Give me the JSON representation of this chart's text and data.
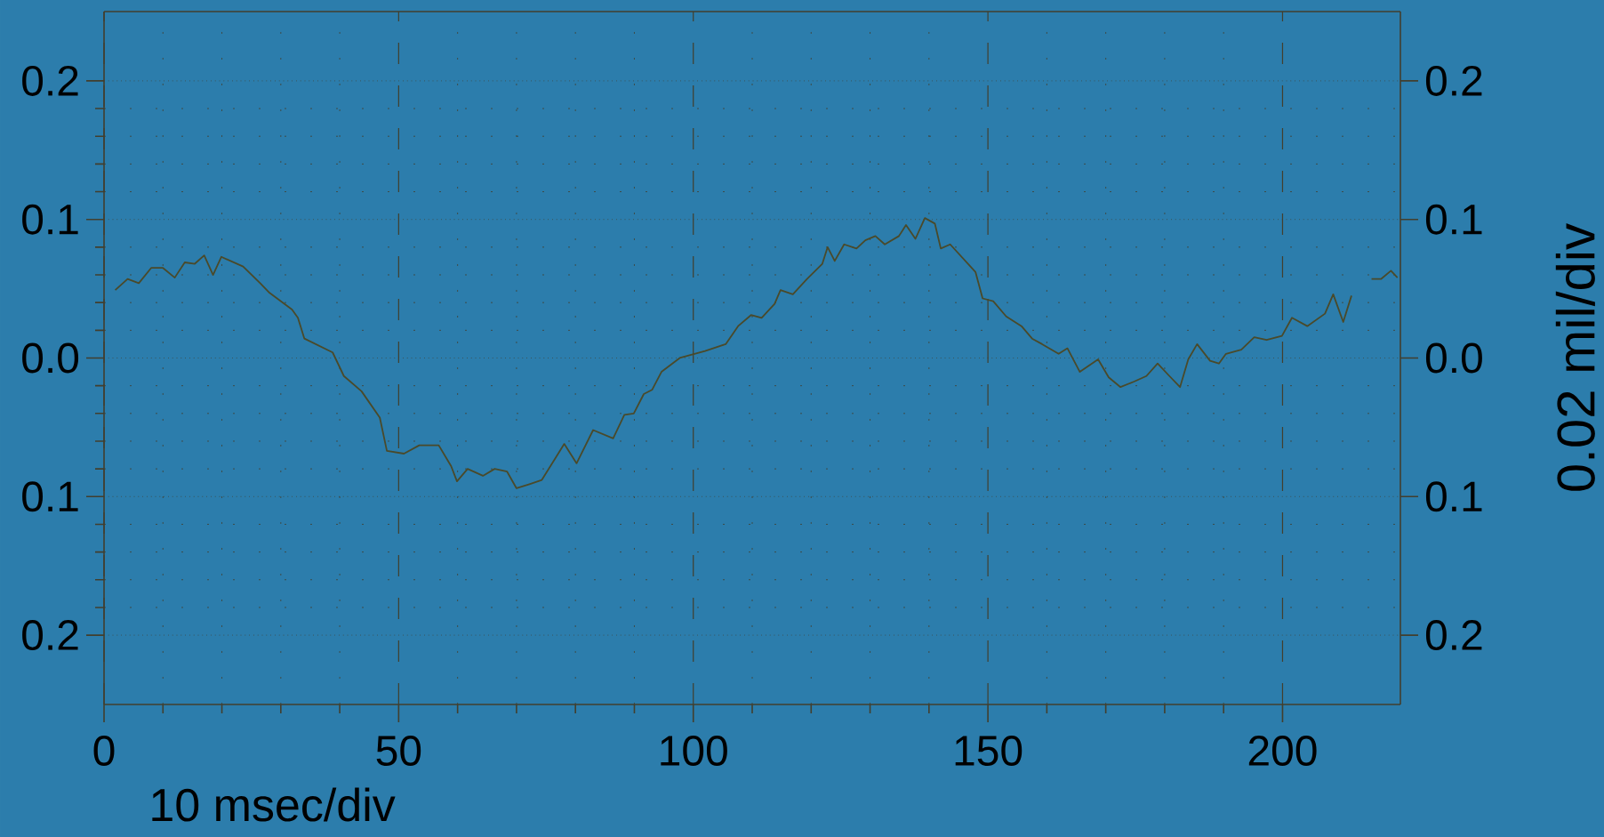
{
  "chart_data": {
    "type": "line",
    "y2label": "0.02 mil/div",
    "annotations": [
      "10 msec/div"
    ],
    "xlim": [
      0,
      220
    ],
    "xticks": [
      0,
      50,
      100,
      150,
      200
    ],
    "ylim": [
      -0.25,
      0.25
    ],
    "yticks": [
      {
        "value": -0.2,
        "label": "0.2"
      },
      {
        "value": -0.1,
        "label": "0.1"
      },
      {
        "value": 0,
        "label": "0.0"
      },
      0.1,
      0.2
    ],
    "y2lim": [
      -0.25,
      0.25
    ],
    "y2ticks": [
      {
        "value": -0.2,
        "label": "0.2"
      },
      {
        "value": -0.1,
        "label": "0.1"
      },
      {
        "value": 0,
        "label": "0.0"
      },
      0.1,
      0.2
    ],
    "grid": true,
    "line_style": "solid",
    "series": [
      {
        "color": "#4a4a2a",
        "x": [
          1.9,
          4.0,
          5.9,
          8.0,
          10.0,
          12.0,
          13.7,
          15.4,
          17.0,
          18.5,
          19.9,
          23.6,
          26.5,
          28.1,
          31.9,
          32.9,
          34.0,
          38.8,
          40.7,
          43.7,
          46.8,
          48.0,
          50.9,
          53.5,
          56.8,
          58.9,
          59.9,
          61.7,
          64.3,
          66.3,
          68.4,
          70.0,
          72.2,
          74.3,
          78.1,
          80.2,
          83.0,
          86.4,
          88.3,
          89.9,
          91.6,
          93.0,
          94.6,
          97.7,
          102.0,
          105.5,
          107.6,
          109.8,
          111.6,
          113.8,
          114.8,
          116.9,
          119.3,
          121.9,
          122.8,
          124.0,
          125.6,
          127.7,
          129.2,
          130.9,
          132.5,
          134.9,
          136.1,
          137.7,
          139.3,
          141.0,
          142.0,
          143.6,
          147.9,
          149.1,
          150.9,
          153.1,
          155.7,
          157.5,
          159.2,
          162.0,
          163.5,
          165.6,
          168.7,
          170.5,
          172.5,
          174.8,
          176.9,
          178.8,
          180.8,
          182.6,
          184.0,
          185.5,
          187.7,
          189.2,
          190.4,
          193.0,
          195.2,
          197.3,
          199.9,
          201.6,
          204.2,
          207.2,
          208.6,
          210.3,
          211.7
        ],
        "values": [
          0.049,
          0.057,
          0.054,
          0.065,
          0.065,
          0.058,
          0.069,
          0.068,
          0.074,
          0.06,
          0.073,
          0.066,
          0.054,
          0.047,
          0.035,
          0.029,
          0.014,
          0.004,
          -0.013,
          -0.024,
          -0.043,
          -0.067,
          -0.069,
          -0.063,
          -0.063,
          -0.078,
          -0.089,
          -0.08,
          -0.085,
          -0.08,
          -0.082,
          -0.094,
          -0.091,
          -0.088,
          -0.062,
          -0.076,
          -0.052,
          -0.058,
          -0.041,
          -0.04,
          -0.026,
          -0.023,
          -0.01,
          0.0,
          0.005,
          0.01,
          0.023,
          0.031,
          0.029,
          0.039,
          0.049,
          0.046,
          0.057,
          0.068,
          0.08,
          0.07,
          0.082,
          0.079,
          0.085,
          0.088,
          0.082,
          0.088,
          0.096,
          0.086,
          0.101,
          0.097,
          0.079,
          0.082,
          0.062,
          0.043,
          0.041,
          0.03,
          0.023,
          0.014,
          0.01,
          0.003,
          0.007,
          -0.01,
          -0.001,
          -0.014,
          -0.021,
          -0.017,
          -0.013,
          -0.004,
          -0.013,
          -0.021,
          -0.001,
          0.01,
          -0.002,
          -0.004,
          0.003,
          0.006,
          0.015,
          0.013,
          0.016,
          0.029,
          0.023,
          0.032,
          0.046,
          0.026,
          0.045
        ]
      },
      {
        "color": "#4a4a2a",
        "x": [
          215.1,
          216.7,
          218.4,
          219.5
        ],
        "values": [
          0.057,
          0.057,
          0.063,
          0.058
        ]
      }
    ]
  }
}
